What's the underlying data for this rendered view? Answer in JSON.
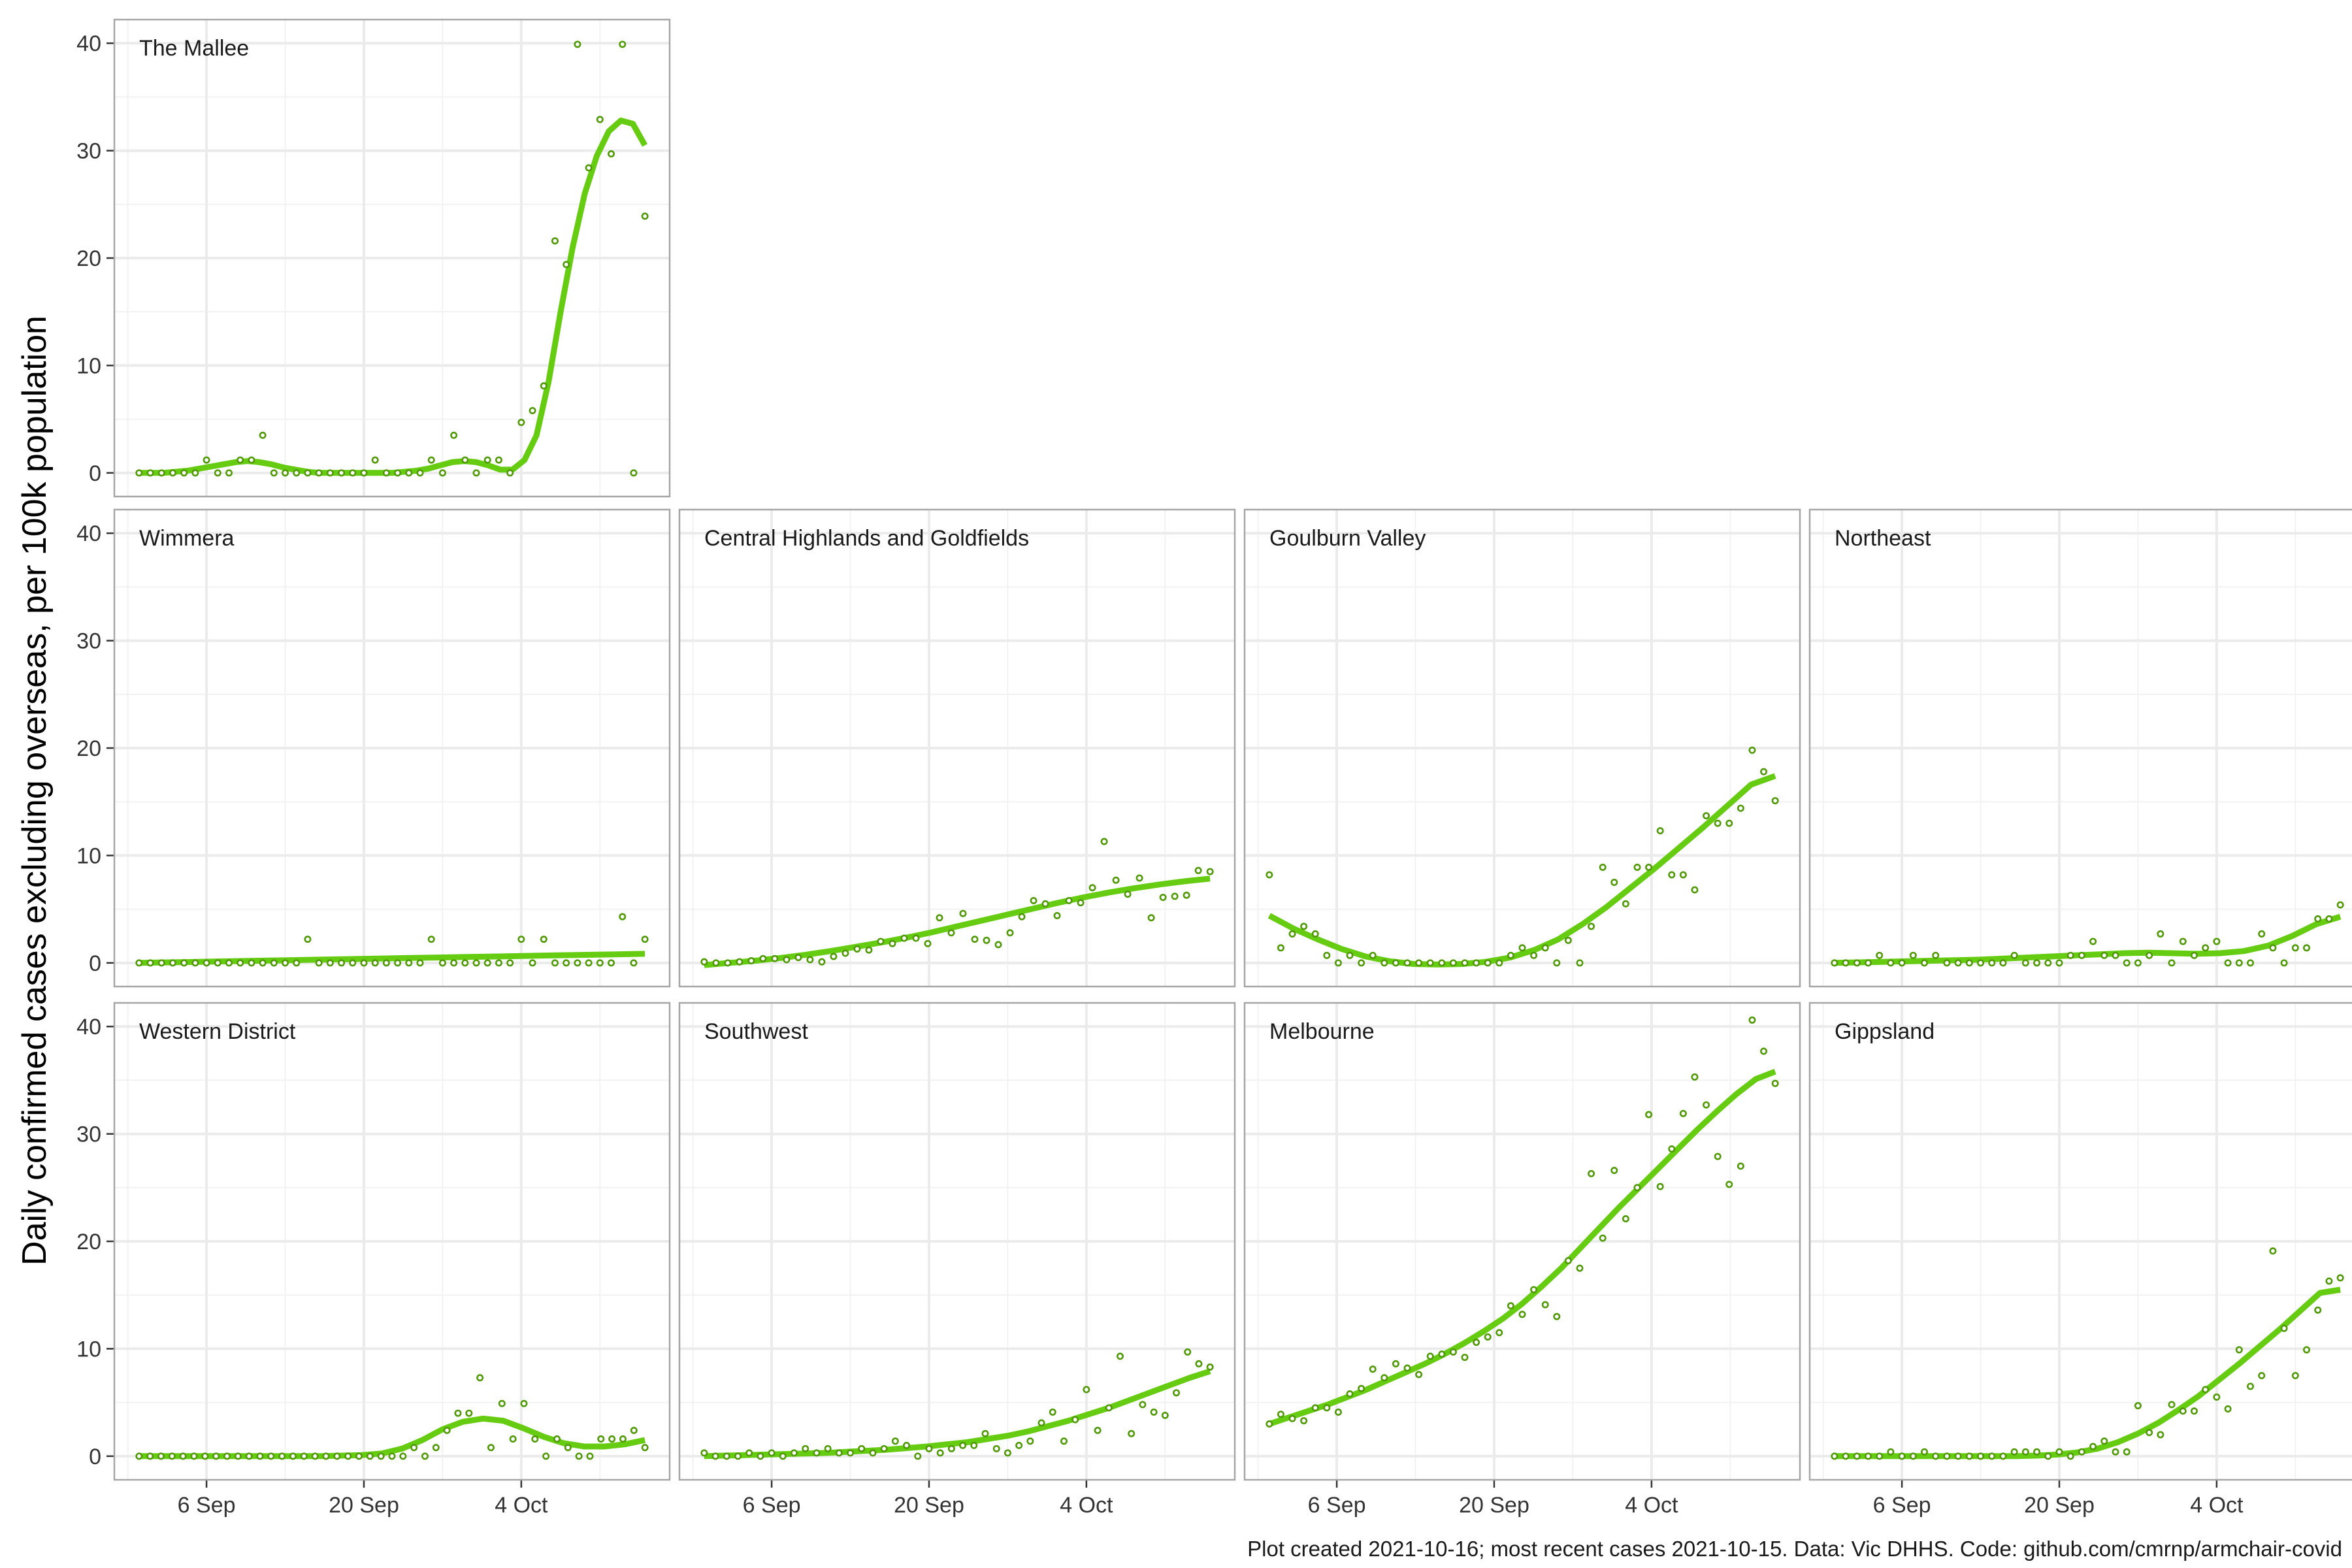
{
  "chart_data": {
    "type": "scatter",
    "ylabel": "Daily confirmed cases excluding overseas, per 100k population",
    "xlabel": "",
    "caption": "Plot created 2021-10-16; most recent cases 2021-10-15. Data: Vic DHHS. Code: github.com/cmrnp/armchair-covid",
    "x_start": "2021-08-31",
    "x_end": "2021-10-15",
    "ylim": [
      0,
      40
    ],
    "y_ticks": [
      "0",
      "10",
      "20",
      "30",
      "40"
    ],
    "x_ticks": [
      {
        "label": "6 Sep",
        "date": "2021-09-06"
      },
      {
        "label": "20 Sep",
        "date": "2021-09-20"
      },
      {
        "label": "4 Oct",
        "date": "2021-10-04"
      }
    ],
    "point_color": "#4f9a06",
    "line_color": "#66cc11",
    "panels": [
      {
        "name": "The Mallee",
        "values": [
          0,
          0,
          0,
          0,
          0,
          0,
          1.2,
          0,
          0,
          1.2,
          1.2,
          3.5,
          0,
          0,
          0,
          0,
          0,
          0,
          0,
          0,
          0,
          1.2,
          0,
          0,
          0,
          0,
          1.2,
          0,
          3.5,
          1.2,
          0,
          1.2,
          1.2,
          0,
          4.7,
          5.8,
          8.1,
          21.6,
          19.4,
          39.9,
          28.4,
          32.9,
          29.7,
          39.9,
          0,
          23.9
        ],
        "smooth": [
          0,
          0,
          0,
          0.1,
          0.2,
          0.4,
          0.6,
          0.8,
          1.0,
          1.1,
          1.0,
          0.8,
          0.5,
          0.3,
          0.1,
          0,
          0,
          0,
          0,
          0,
          0,
          0,
          0.1,
          0.2,
          0.4,
          0.7,
          1.0,
          1.1,
          1.0,
          0.7,
          0.3,
          0.3,
          1.2,
          3.5,
          8.5,
          15,
          21,
          26,
          29.5,
          31.8,
          32.8,
          32.5,
          30.5
        ]
      },
      {
        "name": "Wimmera",
        "values": [
          0,
          0,
          0,
          0,
          0,
          0,
          0,
          0,
          0,
          0,
          0,
          0,
          0,
          0,
          0,
          2.2,
          0,
          0,
          0,
          0,
          0,
          0,
          0,
          0,
          0,
          0,
          2.2,
          0,
          0,
          0,
          0,
          0,
          0,
          0,
          2.2,
          0,
          2.2,
          0,
          0,
          0,
          0,
          0,
          0,
          4.3,
          0,
          2.2
        ],
        "smooth": [
          0,
          0.05,
          0.1,
          0.15,
          0.2,
          0.25,
          0.3,
          0.35,
          0.4,
          0.45,
          0.5,
          0.55,
          0.6,
          0.65,
          0.7,
          0.75,
          0.8,
          0.85
        ]
      },
      {
        "name": "Central Highlands and Goldfields",
        "values": [
          0.1,
          0,
          0,
          0.1,
          0.2,
          0.4,
          0.4,
          0.3,
          0.5,
          0.3,
          0.1,
          0.6,
          0.9,
          1.3,
          1.2,
          2.0,
          1.8,
          2.3,
          2.3,
          1.8,
          4.2,
          2.8,
          4.6,
          2.2,
          2.1,
          1.7,
          2.8,
          4.3,
          5.8,
          5.5,
          4.4,
          5.8,
          5.6,
          7.0,
          11.3,
          7.7,
          6.4,
          7.9,
          4.2,
          6.1,
          6.2,
          6.3,
          8.6,
          8.5
        ],
        "smooth": [
          -0.2,
          0,
          0.2,
          0.45,
          0.75,
          1.1,
          1.5,
          1.9,
          2.35,
          2.85,
          3.4,
          3.95,
          4.5,
          5.05,
          5.6,
          6.1,
          6.55,
          6.95,
          7.3,
          7.6,
          7.85
        ]
      },
      {
        "name": "Goulburn Valley",
        "values": [
          8.2,
          1.4,
          2.7,
          3.4,
          2.7,
          0.7,
          0,
          0.7,
          0,
          0.7,
          0,
          0,
          0,
          0,
          0,
          0,
          0,
          0,
          0,
          0,
          0,
          0.7,
          1.4,
          0.7,
          1.4,
          0,
          2.1,
          0,
          3.4,
          8.9,
          7.5,
          5.5,
          8.9,
          8.9,
          12.3,
          8.2,
          8.2,
          6.8,
          13.7,
          13.0,
          13.0,
          14.4,
          19.8,
          17.8,
          15.1
        ],
        "smooth": [
          4.4,
          3.2,
          2.2,
          1.3,
          0.6,
          0.15,
          -0.1,
          -0.15,
          -0.1,
          0.1,
          0.5,
          1.2,
          2.2,
          3.6,
          5.2,
          7.0,
          8.8,
          10.7,
          12.6,
          14.6,
          16.6,
          17.4
        ]
      },
      {
        "name": "Northeast",
        "values": [
          0,
          0,
          0,
          0,
          0.7,
          0,
          0,
          0.7,
          0,
          0.7,
          0,
          0,
          0,
          0,
          0,
          0,
          0.7,
          0,
          0,
          0,
          0,
          0.7,
          0.7,
          2.0,
          0.7,
          0.7,
          0,
          0,
          0.7,
          2.7,
          0,
          2.0,
          0.7,
          1.4,
          2.0,
          0,
          0,
          0,
          2.7,
          1.4,
          0,
          1.4,
          1.4,
          4.1,
          4.1,
          5.4
        ],
        "smooth": [
          0,
          0.05,
          0.1,
          0.15,
          0.2,
          0.25,
          0.3,
          0.4,
          0.5,
          0.6,
          0.7,
          0.8,
          0.9,
          0.95,
          0.9,
          0.85,
          0.9,
          1.1,
          1.6,
          2.5,
          3.6,
          4.3
        ]
      },
      {
        "name": "Western District",
        "values": [
          0,
          0,
          0,
          0,
          0,
          0,
          0,
          0,
          0,
          0,
          0,
          0,
          0,
          0,
          0,
          0,
          0,
          0,
          0,
          0,
          0,
          0,
          0,
          0,
          0,
          0.8,
          0,
          0.8,
          2.4,
          4.0,
          4.0,
          7.3,
          0.8,
          4.9,
          1.6,
          4.9,
          1.6,
          0,
          1.6,
          0.8,
          0,
          0,
          1.6,
          1.6,
          1.6,
          2.4,
          0.8
        ],
        "smooth": [
          0,
          0,
          0,
          0,
          0,
          0,
          0,
          0,
          0,
          0,
          0.05,
          0.1,
          0.25,
          0.7,
          1.5,
          2.5,
          3.2,
          3.5,
          3.3,
          2.6,
          1.8,
          1.2,
          0.9,
          0.9,
          1.1,
          1.5
        ]
      },
      {
        "name": "Southwest",
        "values": [
          0.3,
          0,
          0,
          0,
          0.3,
          0,
          0.3,
          0,
          0.3,
          0.7,
          0.3,
          0.7,
          0.3,
          0.3,
          0.7,
          0.3,
          0.7,
          1.4,
          1.0,
          0,
          0.7,
          0.3,
          0.7,
          1.0,
          1.0,
          2.1,
          0.7,
          0.3,
          1.0,
          1.4,
          3.1,
          4.1,
          1.4,
          3.4,
          6.2,
          2.4,
          4.5,
          9.3,
          2.1,
          4.8,
          4.1,
          3.8,
          5.9,
          9.7,
          8.6,
          8.3
        ],
        "smooth": [
          0,
          0.05,
          0.1,
          0.15,
          0.2,
          0.25,
          0.3,
          0.4,
          0.5,
          0.6,
          0.75,
          0.9,
          1.1,
          1.3,
          1.6,
          1.9,
          2.3,
          2.8,
          3.3,
          3.9,
          4.5,
          5.2,
          5.9,
          6.6,
          7.3,
          7.9
        ]
      },
      {
        "name": "Melbourne",
        "values": [
          3.0,
          3.9,
          3.5,
          3.3,
          4.5,
          4.5,
          4.1,
          5.8,
          6.3,
          8.1,
          7.3,
          8.6,
          8.2,
          7.6,
          9.3,
          9.5,
          9.7,
          9.2,
          10.6,
          11.1,
          11.5,
          14.0,
          13.2,
          15.5,
          14.1,
          13.0,
          18.2,
          17.5,
          26.3,
          20.3,
          26.6,
          22.1,
          25.0,
          31.8,
          25.1,
          28.6,
          31.9,
          35.3,
          32.7,
          27.9,
          25.3,
          27.0,
          40.6,
          37.7,
          34.7
        ],
        "smooth": [
          3.0,
          3.6,
          4.2,
          4.8,
          5.5,
          6.2,
          7.0,
          7.8,
          8.6,
          9.5,
          10.5,
          11.6,
          12.8,
          14.2,
          15.8,
          17.5,
          19.4,
          21.3,
          23.2,
          25.0,
          26.8,
          28.6,
          30.4,
          32.1,
          33.7,
          35.1,
          35.8
        ]
      },
      {
        "name": "Gippsland",
        "values": [
          0,
          0,
          0,
          0,
          0,
          0.4,
          0,
          0,
          0.4,
          0,
          0,
          0,
          0,
          0,
          0,
          0,
          0.4,
          0.4,
          0.4,
          0,
          0.4,
          0,
          0.4,
          0.9,
          1.4,
          0.4,
          0.4,
          4.7,
          2.2,
          2.0,
          4.8,
          4.2,
          4.2,
          6.2,
          5.5,
          4.4,
          9.9,
          6.5,
          7.5,
          19.1,
          11.9,
          7.5,
          9.9,
          13.6,
          16.3,
          16.6
        ],
        "smooth": [
          0,
          0,
          0,
          0,
          0,
          0,
          0,
          0,
          0,
          0,
          0.05,
          0.15,
          0.35,
          0.7,
          1.3,
          2.1,
          3.1,
          4.3,
          5.6,
          7.1,
          8.6,
          10.2,
          11.8,
          13.5,
          15.2,
          15.5
        ]
      }
    ]
  }
}
